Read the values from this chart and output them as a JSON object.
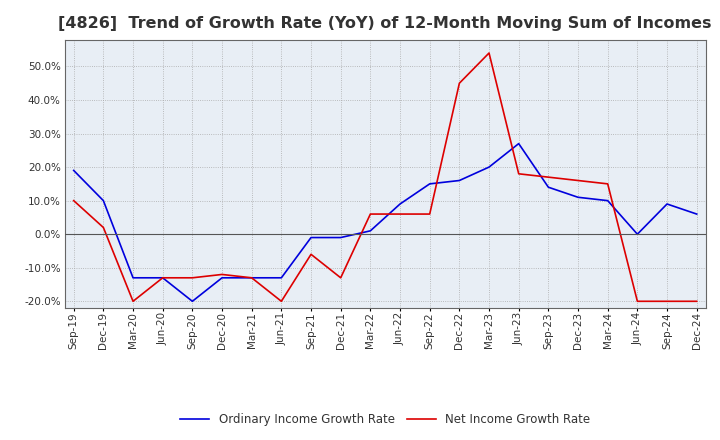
{
  "title": "[4826]  Trend of Growth Rate (YoY) of 12-Month Moving Sum of Incomes",
  "title_fontsize": 11.5,
  "ylim": [
    -22,
    58
  ],
  "yticks": [
    -20,
    -10,
    0,
    10,
    20,
    30,
    40,
    50
  ],
  "ytick_labels": [
    "-20.0%",
    "-10.0%",
    "0.0%",
    "10.0%",
    "20.0%",
    "30.0%",
    "40.0%",
    "50.0%"
  ],
  "x_labels": [
    "Sep-19",
    "Dec-19",
    "Mar-20",
    "Jun-20",
    "Sep-20",
    "Dec-20",
    "Mar-21",
    "Jun-21",
    "Sep-21",
    "Dec-21",
    "Mar-22",
    "Jun-22",
    "Sep-22",
    "Dec-22",
    "Mar-23",
    "Jun-23",
    "Sep-23",
    "Dec-23",
    "Mar-24",
    "Jun-24",
    "Sep-24",
    "Dec-24"
  ],
  "ordinary_income": [
    19,
    10,
    -13,
    -13,
    -20,
    -13,
    -13,
    -13,
    -1,
    -1,
    1,
    9,
    15,
    16,
    20,
    27,
    14,
    11,
    10,
    0,
    9,
    6
  ],
  "net_income": [
    10,
    2,
    -20,
    -13,
    -13,
    -12,
    -13,
    -20,
    -6,
    -13,
    6,
    6,
    6,
    45,
    54,
    18,
    17,
    16,
    15,
    -20,
    -20,
    -20
  ],
  "ordinary_color": "#0000dd",
  "net_color": "#dd0000",
  "line_width": 1.2,
  "plot_bg_color": "#e8eef5",
  "fig_bg_color": "#ffffff",
  "grid_color": "#aaaaaa",
  "grid_style": ":",
  "legend_ordinary": "Ordinary Income Growth Rate",
  "legend_net": "Net Income Growth Rate",
  "spine_color": "#666666"
}
